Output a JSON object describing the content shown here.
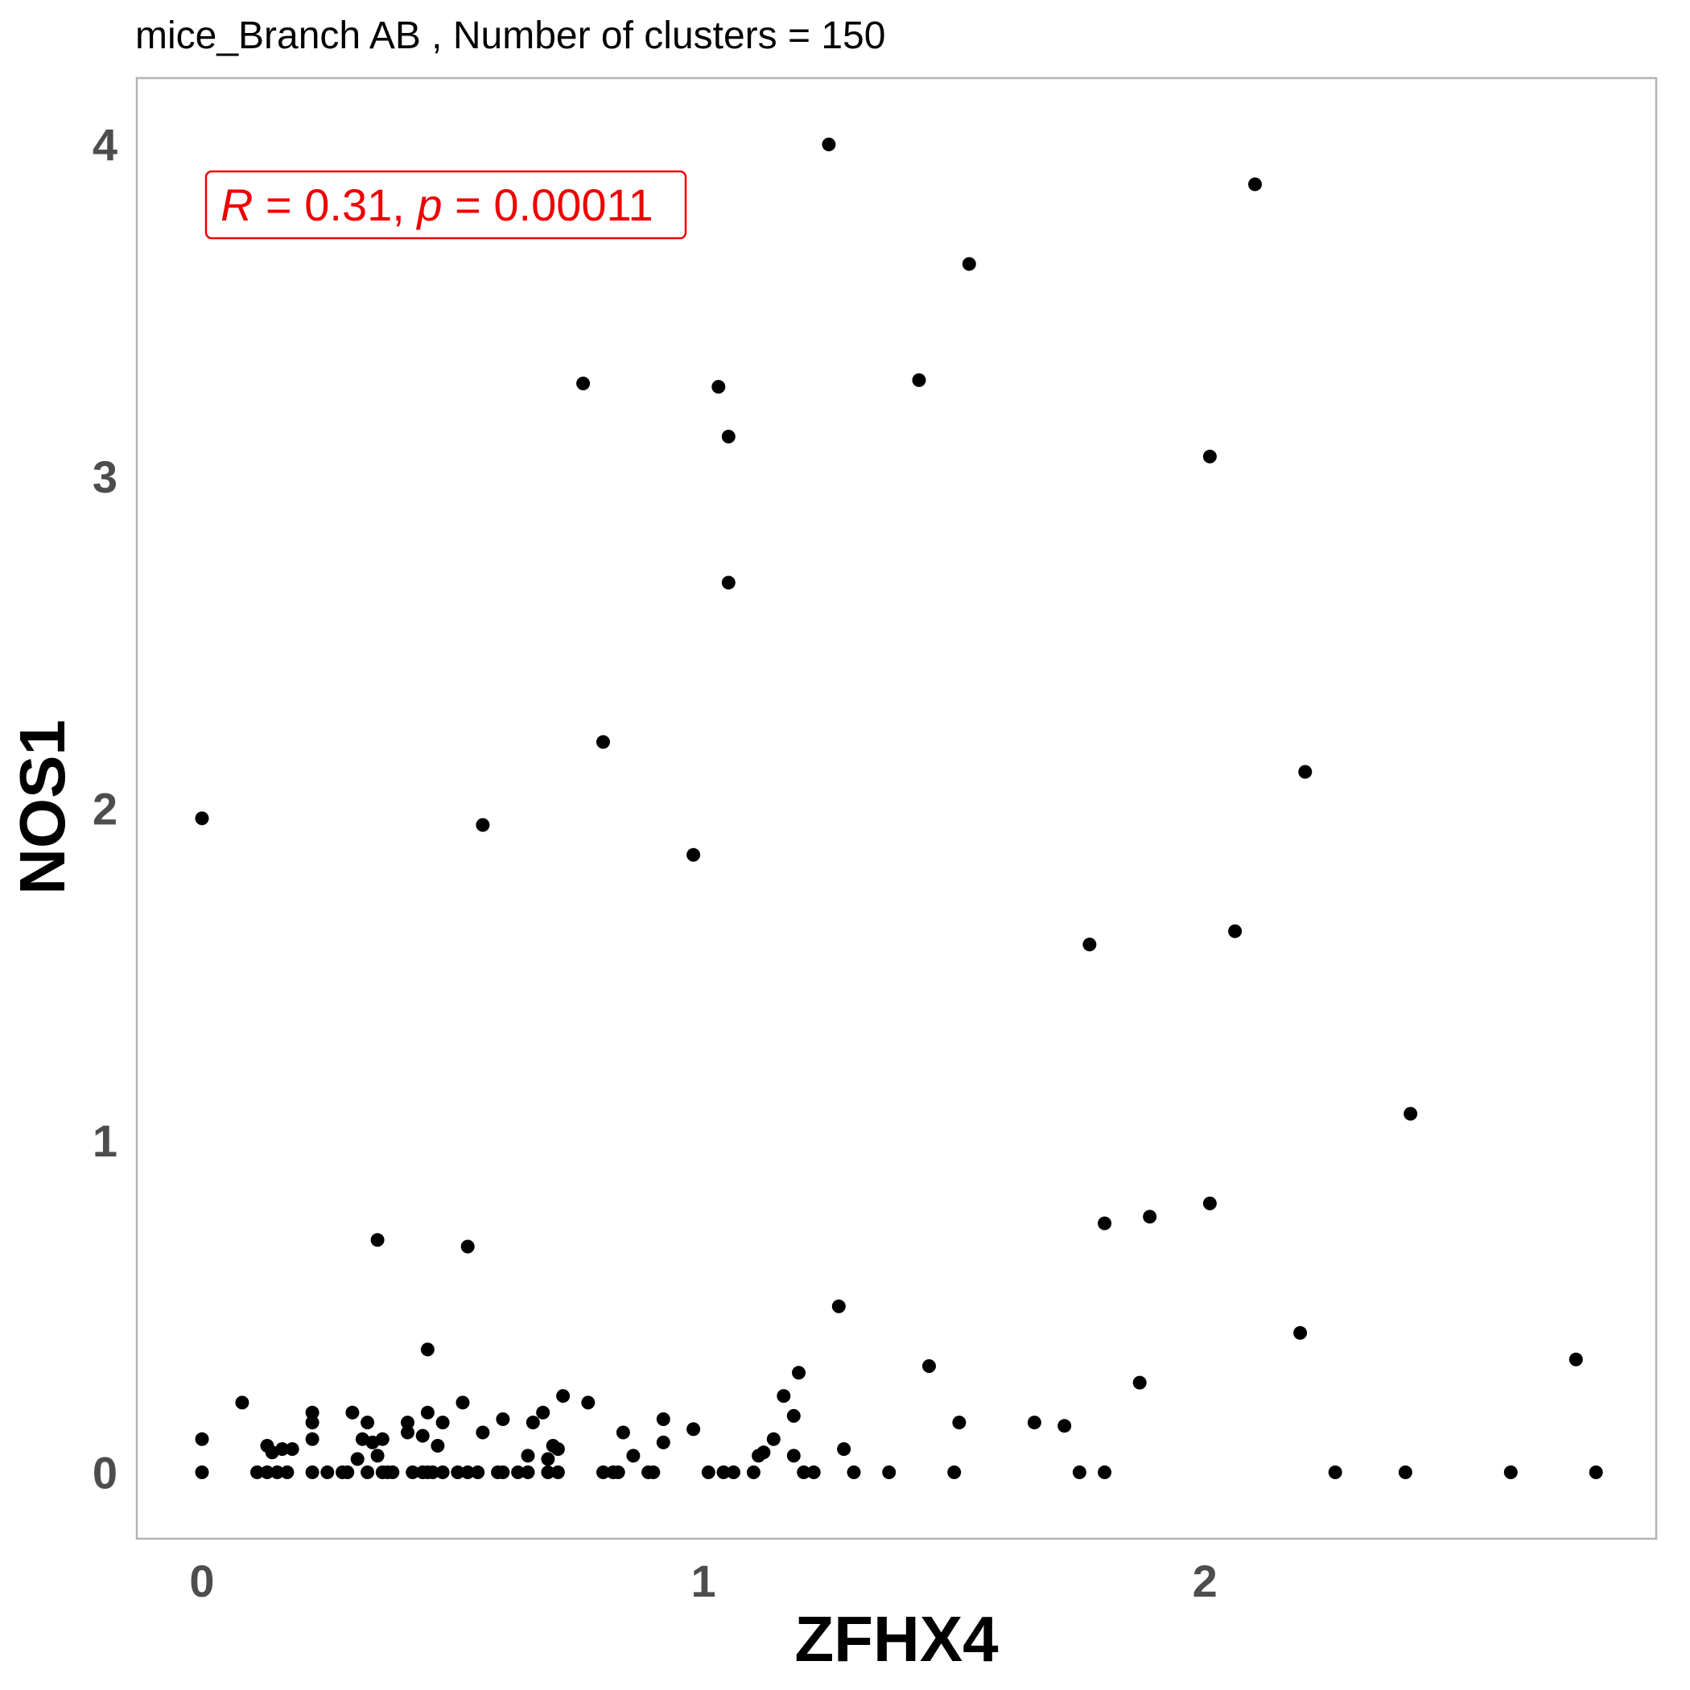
{
  "chart_data": {
    "type": "scatter",
    "title": "mice_Branch AB , Number of clusters =  150",
    "xlabel": "ZFHX4",
    "ylabel": "NOS1",
    "xlim": [
      -0.13,
      2.9
    ],
    "ylim": [
      -0.2,
      4.2
    ],
    "xticks": [
      0,
      1,
      2
    ],
    "yticks": [
      0,
      1,
      2,
      3,
      4
    ],
    "grid": false,
    "point_color": "#000000",
    "annotation": {
      "r_symbol": "R",
      "r_text": " = 0.31, ",
      "p_symbol": "p",
      "p_text": " = 0.00011",
      "color": "#ee0000"
    },
    "points": [
      [
        0.0,
        0.0
      ],
      [
        0.0,
        0.1
      ],
      [
        0.0,
        1.97
      ],
      [
        0.08,
        0.21
      ],
      [
        0.11,
        0.0
      ],
      [
        0.13,
        0.0
      ],
      [
        0.13,
        0.08
      ],
      [
        0.14,
        0.06
      ],
      [
        0.15,
        0.0
      ],
      [
        0.16,
        0.07
      ],
      [
        0.17,
        0.0
      ],
      [
        0.18,
        0.07
      ],
      [
        0.22,
        0.0
      ],
      [
        0.22,
        0.15
      ],
      [
        0.22,
        0.18
      ],
      [
        0.22,
        0.1
      ],
      [
        0.25,
        0.0
      ],
      [
        0.28,
        0.0
      ],
      [
        0.29,
        0.0
      ],
      [
        0.3,
        0.18
      ],
      [
        0.31,
        0.04
      ],
      [
        0.32,
        0.1
      ],
      [
        0.33,
        0.0
      ],
      [
        0.33,
        0.15
      ],
      [
        0.34,
        0.09
      ],
      [
        0.35,
        0.05
      ],
      [
        0.35,
        0.7
      ],
      [
        0.36,
        0.0
      ],
      [
        0.36,
        0.1
      ],
      [
        0.37,
        0.0
      ],
      [
        0.38,
        0.0
      ],
      [
        0.41,
        0.15
      ],
      [
        0.41,
        0.12
      ],
      [
        0.42,
        0.0
      ],
      [
        0.44,
        0.11
      ],
      [
        0.44,
        0.0
      ],
      [
        0.45,
        0.0
      ],
      [
        0.45,
        0.37
      ],
      [
        0.45,
        0.18
      ],
      [
        0.46,
        0.0
      ],
      [
        0.47,
        0.08
      ],
      [
        0.48,
        0.0
      ],
      [
        0.48,
        0.15
      ],
      [
        0.51,
        0.0
      ],
      [
        0.52,
        0.21
      ],
      [
        0.53,
        0.0
      ],
      [
        0.53,
        0.68
      ],
      [
        0.55,
        0.0
      ],
      [
        0.56,
        1.95
      ],
      [
        0.56,
        0.12
      ],
      [
        0.59,
        0.0
      ],
      [
        0.6,
        0.0
      ],
      [
        0.6,
        0.16
      ],
      [
        0.63,
        0.0
      ],
      [
        0.65,
        0.0
      ],
      [
        0.65,
        0.05
      ],
      [
        0.66,
        0.15
      ],
      [
        0.68,
        0.18
      ],
      [
        0.69,
        0.0
      ],
      [
        0.69,
        0.04
      ],
      [
        0.7,
        0.08
      ],
      [
        0.71,
        0.0
      ],
      [
        0.71,
        0.07
      ],
      [
        0.72,
        0.23
      ],
      [
        0.76,
        3.28
      ],
      [
        0.77,
        0.21
      ],
      [
        0.8,
        2.2
      ],
      [
        0.8,
        0.0
      ],
      [
        0.82,
        0.0
      ],
      [
        0.83,
        0.0
      ],
      [
        0.84,
        0.12
      ],
      [
        0.86,
        0.05
      ],
      [
        0.89,
        0.0
      ],
      [
        0.9,
        0.0
      ],
      [
        0.92,
        0.16
      ],
      [
        0.92,
        0.09
      ],
      [
        0.98,
        1.86
      ],
      [
        0.98,
        0.13
      ],
      [
        1.01,
        0.0
      ],
      [
        1.03,
        3.27
      ],
      [
        1.04,
        0.0
      ],
      [
        1.05,
        3.12
      ],
      [
        1.05,
        2.68
      ],
      [
        1.06,
        0.0
      ],
      [
        1.1,
        0.0
      ],
      [
        1.11,
        0.05
      ],
      [
        1.12,
        0.06
      ],
      [
        1.14,
        0.1
      ],
      [
        1.16,
        0.23
      ],
      [
        1.18,
        0.17
      ],
      [
        1.18,
        0.05
      ],
      [
        1.19,
        0.3
      ],
      [
        1.2,
        0.0
      ],
      [
        1.22,
        0.0
      ],
      [
        1.25,
        4.0
      ],
      [
        1.27,
        0.5
      ],
      [
        1.28,
        0.07
      ],
      [
        1.3,
        0.0
      ],
      [
        1.37,
        0.0
      ],
      [
        1.43,
        3.29
      ],
      [
        1.45,
        0.32
      ],
      [
        1.5,
        0.0
      ],
      [
        1.51,
        0.15
      ],
      [
        1.53,
        3.64
      ],
      [
        1.66,
        0.15
      ],
      [
        1.72,
        0.14
      ],
      [
        1.75,
        0.0
      ],
      [
        1.77,
        1.59
      ],
      [
        1.8,
        0.75
      ],
      [
        1.8,
        0.0
      ],
      [
        1.87,
        0.27
      ],
      [
        1.89,
        0.77
      ],
      [
        2.01,
        3.06
      ],
      [
        2.01,
        0.81
      ],
      [
        2.06,
        1.63
      ],
      [
        2.1,
        3.88
      ],
      [
        2.19,
        0.42
      ],
      [
        2.2,
        2.11
      ],
      [
        2.26,
        0.0
      ],
      [
        2.4,
        0.0
      ],
      [
        2.41,
        1.08
      ],
      [
        2.61,
        0.0
      ],
      [
        2.74,
        0.34
      ],
      [
        2.78,
        0.0
      ]
    ]
  }
}
